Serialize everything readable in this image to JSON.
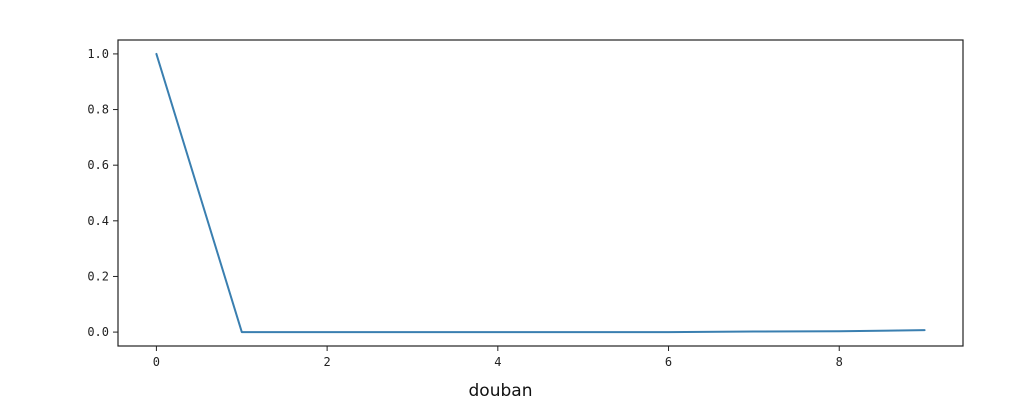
{
  "chart_data": {
    "type": "line",
    "title": "",
    "xlabel": "douban",
    "ylabel": "",
    "xlim": [
      -0.45,
      9.45
    ],
    "ylim": [
      -0.05,
      1.05
    ],
    "x_ticks": [
      0,
      2,
      4,
      6,
      8
    ],
    "y_ticks": [
      0.0,
      0.2,
      0.4,
      0.6,
      0.8,
      1.0
    ],
    "x_tick_labels": [
      "0",
      "2",
      "4",
      "6",
      "8"
    ],
    "y_tick_labels": [
      "0.0",
      "0.2",
      "0.4",
      "0.6",
      "0.8",
      "1.0"
    ],
    "grid": false,
    "legend": "none",
    "series": [
      {
        "color": "#3a7fb0",
        "x": [
          0,
          1,
          2,
          3,
          4,
          5,
          6,
          7,
          8,
          9
        ],
        "y": [
          1.0,
          0.0,
          0.0,
          0.0,
          0.0,
          0.0,
          0.0,
          0.002,
          0.003,
          0.007
        ]
      }
    ]
  }
}
